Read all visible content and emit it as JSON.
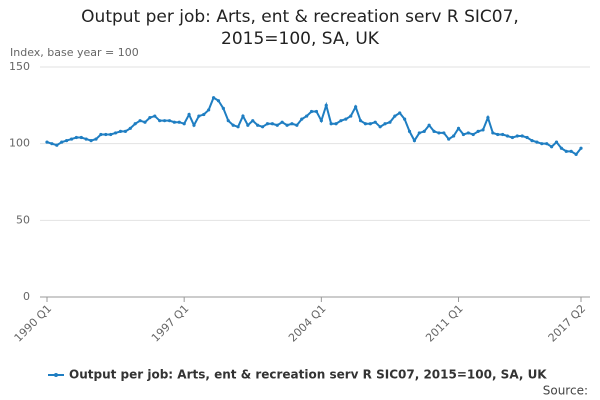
{
  "chart_data": {
    "type": "line",
    "title": "Output per job: Arts, ent & recreation serv R SIC07, 2015=100, SA, UK",
    "y_label": "Index, base year = 100",
    "source": "Source:",
    "categories": [
      "1990 Q1",
      null,
      null,
      null,
      null,
      null,
      null,
      null,
      null,
      null,
      null,
      null,
      null,
      null,
      null,
      null,
      null,
      null,
      null,
      null,
      null,
      null,
      null,
      null,
      null,
      null,
      null,
      null,
      "1997 Q1",
      null,
      null,
      null,
      null,
      null,
      null,
      null,
      null,
      null,
      null,
      null,
      null,
      null,
      null,
      null,
      null,
      null,
      null,
      null,
      null,
      null,
      null,
      null,
      null,
      null,
      null,
      null,
      "2004 Q1",
      null,
      null,
      null,
      null,
      null,
      null,
      null,
      null,
      null,
      null,
      null,
      null,
      null,
      null,
      null,
      null,
      null,
      null,
      null,
      null,
      null,
      null,
      null,
      null,
      null,
      null,
      null,
      "2011 Q1",
      null,
      null,
      null,
      null,
      null,
      null,
      null,
      null,
      null,
      null,
      null,
      null,
      null,
      null,
      null,
      null,
      null,
      null,
      null,
      null,
      null,
      null,
      null,
      null,
      "2017 Q2"
    ],
    "series": [
      {
        "name": "Output per job: Arts, ent & recreation serv R SIC07, 2015=100, SA, UK",
        "color": "#1f7ec2",
        "values": [
          101,
          100,
          99,
          101,
          102,
          103,
          104,
          104,
          103,
          102,
          103,
          106,
          106,
          106,
          107,
          108,
          108,
          110,
          113,
          115,
          114,
          117,
          118,
          115,
          115,
          115,
          114,
          114,
          113,
          119,
          112,
          118,
          119,
          122,
          130,
          128,
          123,
          115,
          112,
          111,
          118,
          112,
          115,
          112,
          111,
          113,
          113,
          112,
          114,
          112,
          113,
          112,
          116,
          118,
          121,
          121,
          115,
          125,
          113,
          113,
          115,
          116,
          118,
          124,
          115,
          113,
          113,
          114,
          111,
          113,
          114,
          118,
          120,
          116,
          108,
          102,
          107,
          108,
          112,
          108,
          107,
          107,
          103,
          105,
          110,
          106,
          107,
          106,
          108,
          109,
          117,
          107,
          106,
          106,
          105,
          104,
          105,
          105,
          104,
          102,
          101,
          100,
          100,
          98,
          101,
          97,
          95,
          95,
          93,
          97
        ]
      }
    ],
    "ylim": [
      0,
      150
    ],
    "yticks": [
      0,
      50,
      100,
      150
    ],
    "grid": true
  }
}
